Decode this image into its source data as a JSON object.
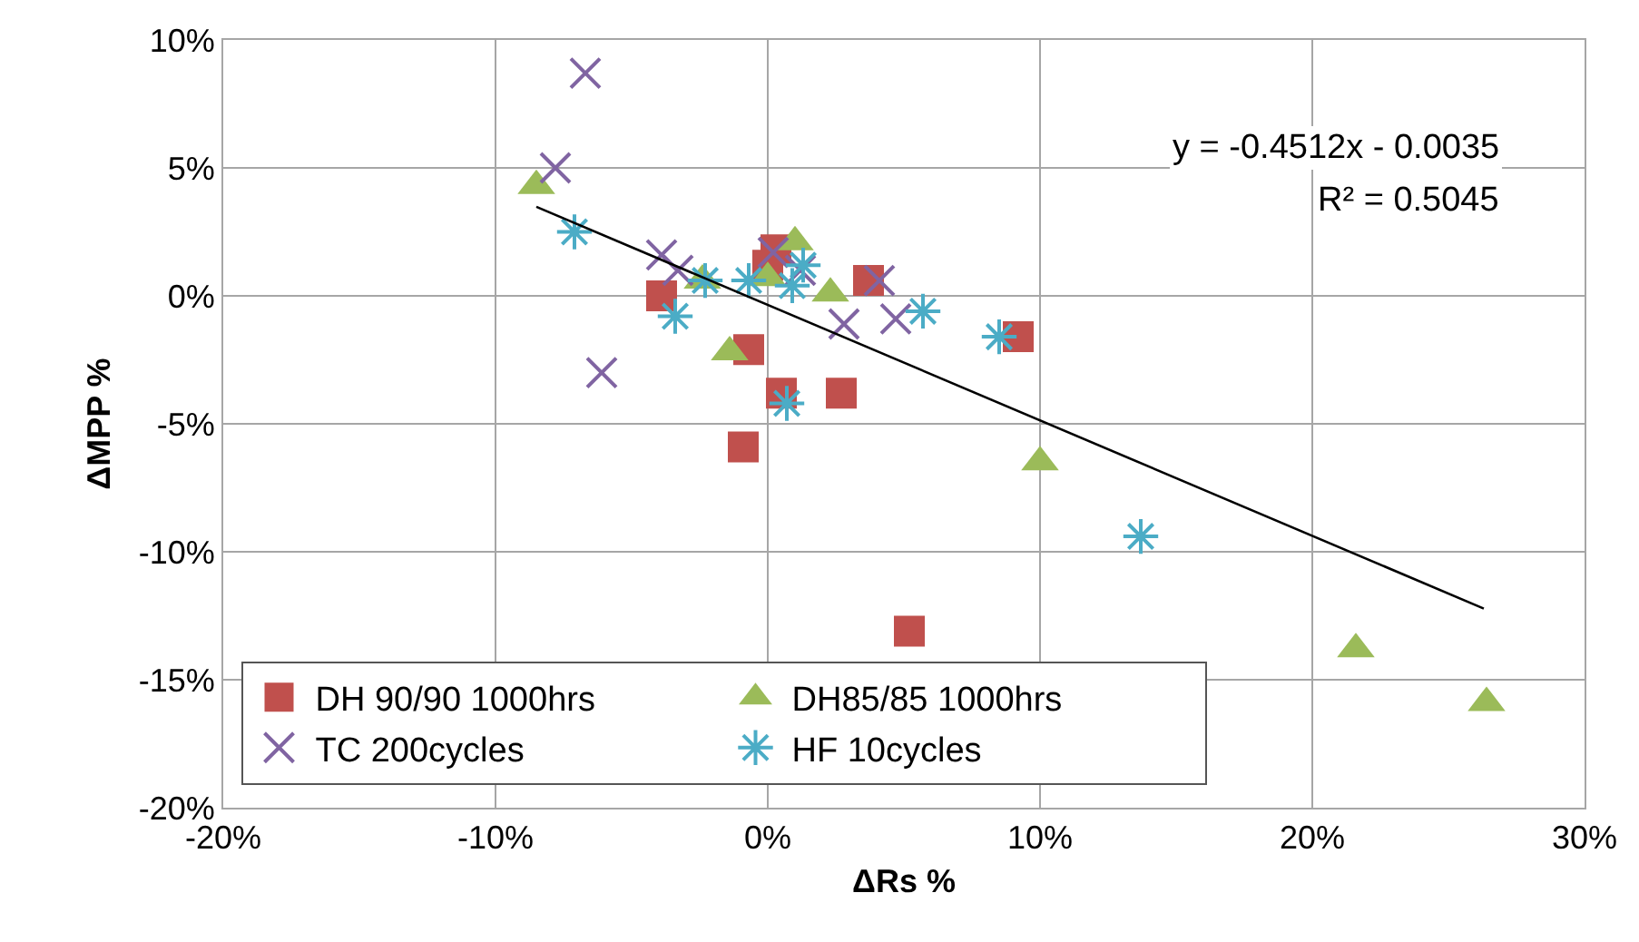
{
  "chart_data": {
    "type": "scatter",
    "xlabel": "ΔRs %",
    "ylabel": "ΔMPP %",
    "xlim": [
      -20,
      30
    ],
    "xticks": [
      {
        "value": -20,
        "label": "-20%"
      },
      {
        "value": -10,
        "label": "-10%"
      },
      {
        "value": 0,
        "label": "0%"
      },
      {
        "value": 10,
        "label": "10%"
      },
      {
        "value": 20,
        "label": "20%"
      },
      {
        "value": 30,
        "label": "30%"
      }
    ],
    "ylim": [
      -20,
      10
    ],
    "yticks": [
      {
        "value": -20,
        "label": "-20%"
      },
      {
        "value": -15,
        "label": "-15%"
      },
      {
        "value": -10,
        "label": "-10%"
      },
      {
        "value": -5,
        "label": "-5%"
      },
      {
        "value": 0,
        "label": "0%"
      },
      {
        "value": 5,
        "label": "5%"
      },
      {
        "value": 10,
        "label": "10%"
      }
    ],
    "grid": true,
    "legend": "bottom left",
    "series": [
      {
        "name": "DH 90/90 1000hrs",
        "color": "#c0504d",
        "marker": "square",
        "x": [
          -3.9,
          0.0,
          0.3,
          -0.7,
          0.5,
          2.7,
          -0.9,
          3.7,
          9.2,
          5.2
        ],
        "values": [
          0.0,
          1.2,
          1.8,
          -2.1,
          -3.8,
          -3.8,
          -5.9,
          0.6,
          -1.6,
          -13.1
        ]
      },
      {
        "name": "DH85/85 1000hrs",
        "color": "#9bbb59",
        "marker": "triangle",
        "x": [
          -8.5,
          -2.4,
          0.0,
          1.0,
          2.3,
          -1.4,
          10.0,
          21.6,
          26.4
        ],
        "values": [
          4.3,
          0.6,
          0.7,
          2.1,
          0.1,
          -2.2,
          -6.5,
          -13.8,
          -15.9
        ]
      },
      {
        "name": "TC 200cycles",
        "color": "#8064a2",
        "marker": "cross",
        "x": [
          -6.7,
          -7.8,
          -3.9,
          -3.3,
          0.2,
          1.2,
          4.1,
          2.8,
          4.7,
          -6.1
        ],
        "values": [
          8.7,
          5.0,
          1.6,
          1.0,
          1.7,
          1.0,
          0.6,
          -1.1,
          -0.9,
          -3.0
        ]
      },
      {
        "name": "HF 10cycles",
        "color": "#4bacc6",
        "marker": "cross",
        "x": [
          -7.1,
          -3.4,
          -2.3,
          -0.7,
          0.9,
          1.3,
          5.7,
          8.5,
          0.7,
          13.7
        ],
        "values": [
          2.5,
          -0.8,
          0.6,
          0.6,
          0.4,
          1.2,
          -0.6,
          -1.6,
          -4.2,
          -9.4
        ]
      },
      {
        "type": "line",
        "color": "#000000",
        "marker": "none",
        "x": [
          -8.5,
          26.3
        ],
        "values": [
          3.48,
          -12.22
        ]
      }
    ],
    "annotations": [
      "y = -0.4512x - 0.0035",
      "R² = 0.5045"
    ]
  }
}
